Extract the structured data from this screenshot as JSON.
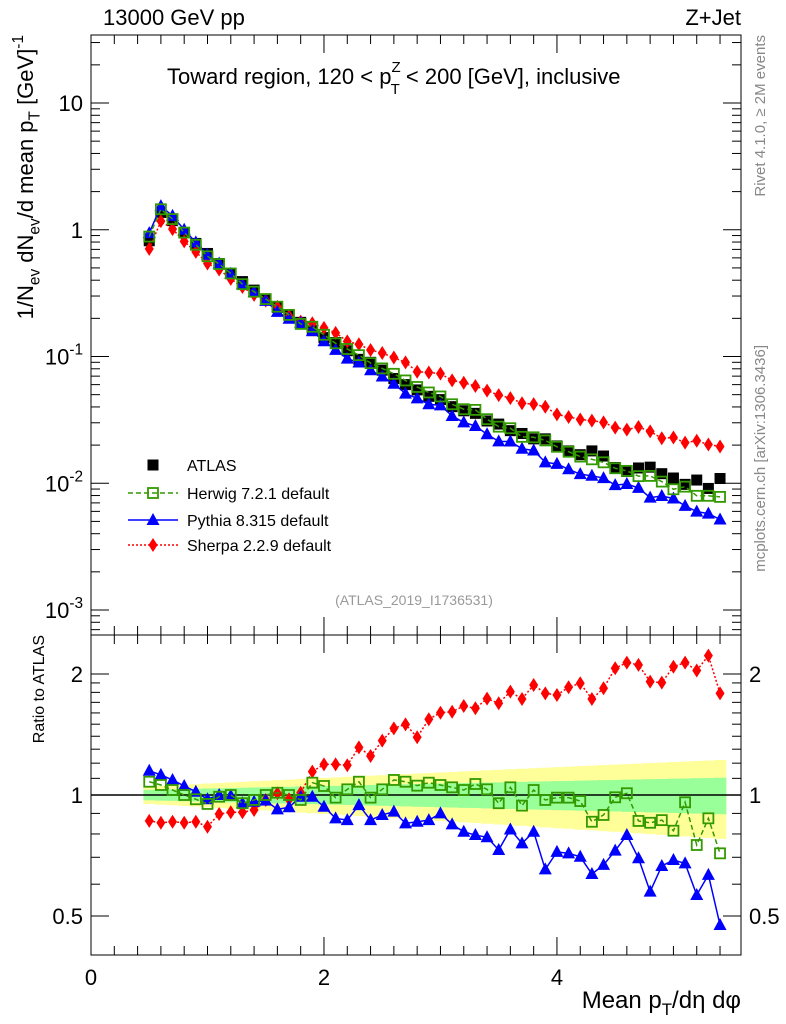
{
  "chart_data": {
    "type": "scatter",
    "header_left": "13000 GeV pp",
    "header_right": "Z+Jet",
    "title_parts": [
      "Toward region, 120 < p",
      "Z",
      "T",
      " < 200 [GeV], inclusive"
    ],
    "ylabel_parts": [
      "1/N",
      "ev",
      " dN",
      "ev",
      "/d mean p",
      "T",
      " [GeV]",
      "-1"
    ],
    "xlabel_parts": [
      "Mean p",
      "T",
      "/dη dφ"
    ],
    "ratio_ylabel": "Ratio to ATLAS",
    "analysis_label": "(ATLAS_2019_I1736531)",
    "side_label_top": "Rivet 4.1.0, ≥ 2M events",
    "side_label_bottom": "mcplots.cern.ch [arXiv:1306.3436]",
    "xlim": [
      0,
      5.58
    ],
    "ylim": [
      0.000635,
      34.4
    ],
    "yscale": "log",
    "ratio_ylim": [
      0.4,
      2.5
    ],
    "ratio_yscale": "log",
    "x_ticks": [
      "0",
      "2",
      "4"
    ],
    "y_ticks": [
      {
        "base": "10",
        "exp": "-3",
        "v": 0.001
      },
      {
        "base": "10",
        "exp": "-2",
        "v": 0.01
      },
      {
        "base": "10",
        "exp": "-1",
        "v": 0.1
      },
      {
        "base": "1",
        "exp": "",
        "v": 1
      },
      {
        "base": "10",
        "exp": "",
        "v": 10
      }
    ],
    "ratio_ticks": [
      {
        "label": "0.5",
        "v": 0.5
      },
      {
        "label": "1",
        "v": 1
      },
      {
        "label": "2",
        "v": 2
      }
    ],
    "legend_placement": "lower-left",
    "x": [
      0.5,
      0.6,
      0.7,
      0.8,
      0.9,
      1.0,
      1.1,
      1.2,
      1.3,
      1.4,
      1.5,
      1.6,
      1.7,
      1.8,
      1.9,
      2.0,
      2.1,
      2.2,
      2.3,
      2.4,
      2.5,
      2.6,
      2.7,
      2.8,
      2.9,
      3.0,
      3.1,
      3.2,
      3.3,
      3.4,
      3.5,
      3.6,
      3.7,
      3.8,
      3.9,
      4.0,
      4.1,
      4.2,
      4.3,
      4.4,
      4.5,
      4.6,
      4.7,
      4.8,
      4.9,
      5.0,
      5.1,
      5.2,
      5.3,
      5.4
    ],
    "data": {
      "name": "ATLAS",
      "values": [
        0.819,
        1.37,
        1.18,
        0.95,
        0.78,
        0.65,
        0.542,
        0.452,
        0.39,
        0.334,
        0.284,
        0.244,
        0.213,
        0.186,
        0.16,
        0.141,
        0.129,
        0.111,
        0.095,
        0.09,
        0.078,
        0.067,
        0.06,
        0.0545,
        0.0485,
        0.0457,
        0.0402,
        0.0373,
        0.0356,
        0.031,
        0.0293,
        0.026,
        0.0247,
        0.0224,
        0.0224,
        0.0197,
        0.018,
        0.0168,
        0.018,
        0.0164,
        0.0133,
        0.0124,
        0.0132,
        0.0134,
        0.0119,
        0.011,
        0.0098,
        0.0106,
        0.0091,
        0.0109
      ],
      "band_inner_rel": [
        0.03,
        0.032,
        0.033,
        0.035,
        0.036,
        0.038,
        0.039,
        0.041,
        0.042,
        0.044,
        0.045,
        0.047,
        0.048,
        0.05,
        0.051,
        0.053,
        0.054,
        0.056,
        0.057,
        0.059,
        0.06,
        0.062,
        0.063,
        0.065,
        0.066,
        0.068,
        0.069,
        0.071,
        0.072,
        0.074,
        0.075,
        0.077,
        0.078,
        0.08,
        0.081,
        0.083,
        0.084,
        0.086,
        0.087,
        0.089,
        0.09,
        0.092,
        0.093,
        0.095,
        0.096,
        0.098,
        0.099,
        0.101,
        0.102,
        0.104
      ],
      "band_outer_rel": [
        0.05,
        0.054,
        0.057,
        0.061,
        0.064,
        0.068,
        0.071,
        0.075,
        0.078,
        0.082,
        0.085,
        0.089,
        0.092,
        0.096,
        0.099,
        0.103,
        0.106,
        0.11,
        0.113,
        0.117,
        0.12,
        0.124,
        0.127,
        0.131,
        0.134,
        0.138,
        0.141,
        0.145,
        0.148,
        0.152,
        0.155,
        0.159,
        0.162,
        0.166,
        0.169,
        0.173,
        0.176,
        0.18,
        0.183,
        0.187,
        0.19,
        0.194,
        0.197,
        0.201,
        0.204,
        0.208,
        0.211,
        0.215,
        0.218,
        0.222
      ],
      "color": "#000000",
      "inner_band_color": "#99ff99",
      "outer_band_color": "#ffff99"
    },
    "series": [
      {
        "name": "Herwig 7.2.1 default",
        "marker": "open-square",
        "line": "dashed",
        "color": "#339900",
        "ratio": [
          1.079,
          1.059,
          1.029,
          1.0,
          0.976,
          0.95,
          0.99,
          1.0,
          0.954,
          0.972,
          1.0,
          1.013,
          1.0,
          0.972,
          1.073,
          1.053,
          0.985,
          1.033,
          1.079,
          0.985,
          1.033,
          1.09,
          1.079,
          1.055,
          1.073,
          1.059,
          1.045,
          1.029,
          1.065,
          1.033,
          0.954,
          1.045,
          0.941,
          1.029,
          0.972,
          0.985,
          0.985,
          0.966,
          0.858,
          0.892,
          0.987,
          1.01,
          0.862,
          0.853,
          0.866,
          0.815,
          0.959,
          0.751,
          0.875,
          0.716
        ]
      },
      {
        "name": "Pythia 8.315 default",
        "marker": "triangle",
        "line": "solid",
        "color": "#0000ff",
        "ratio": [
          1.149,
          1.122,
          1.09,
          1.053,
          1.019,
          0.976,
          1.0,
          0.996,
          0.954,
          0.962,
          0.968,
          0.921,
          0.932,
          0.99,
          0.99,
          0.935,
          0.875,
          0.866,
          0.944,
          0.866,
          0.892,
          0.909,
          0.85,
          0.858,
          0.866,
          0.9,
          0.845,
          0.81,
          0.795,
          0.785,
          0.73,
          0.821,
          0.758,
          0.81,
          0.653,
          0.722,
          0.716,
          0.702,
          0.636,
          0.67,
          0.727,
          0.795,
          0.696,
          0.575,
          0.666,
          0.689,
          0.676,
          0.564,
          0.633,
          0.475
        ]
      },
      {
        "name": "Sherpa 2.2.9 default",
        "marker": "diamond",
        "line": "dotted",
        "color": "#ff0000",
        "ratio": [
          0.862,
          0.853,
          0.858,
          0.853,
          0.858,
          0.834,
          0.897,
          0.906,
          0.906,
          0.918,
          0.972,
          1.01,
          0.976,
          1.013,
          1.143,
          1.192,
          1.192,
          1.186,
          1.314,
          1.25,
          1.365,
          1.465,
          1.499,
          1.392,
          1.543,
          1.602,
          1.611,
          1.665,
          1.643,
          1.736,
          1.691,
          1.807,
          1.733,
          1.878,
          1.79,
          1.773,
          1.853,
          1.897,
          1.733,
          1.843,
          2.067,
          2.134,
          2.107,
          1.914,
          1.903,
          2.085,
          2.134,
          2.04,
          2.221,
          1.79
        ]
      }
    ]
  }
}
